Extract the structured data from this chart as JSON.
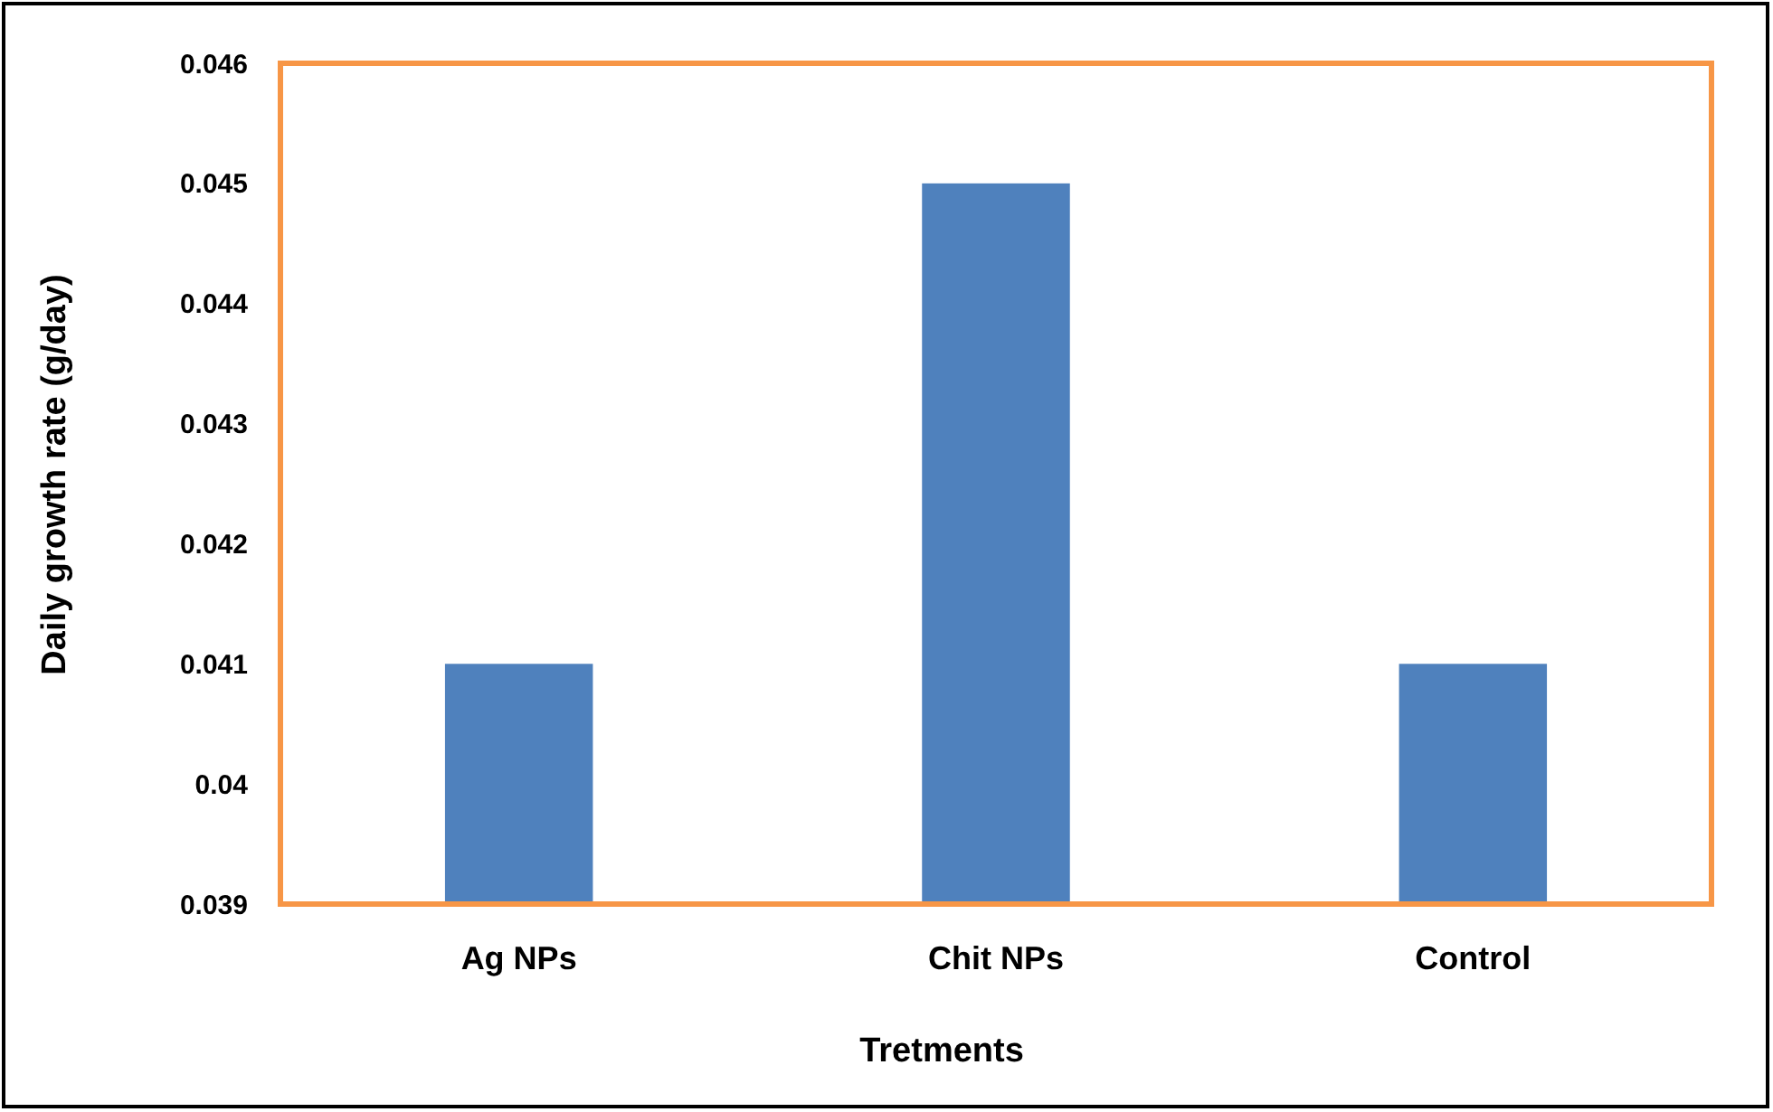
{
  "chart_data": {
    "type": "bar",
    "xlabel": "Tretments",
    "ylabel": "Daily growth rate (g/day)",
    "categories": [
      "Ag NPs",
      "Chit NPs",
      "Control"
    ],
    "values": [
      0.041,
      0.045,
      0.041
    ],
    "color": "#4f81bd",
    "ylim": [
      0.039,
      0.046
    ],
    "yticks": [
      {
        "value": 0.039,
        "label": "0.039"
      },
      {
        "value": 0.04,
        "label": "0.04"
      },
      {
        "value": 0.041,
        "label": "0.041"
      },
      {
        "value": 0.042,
        "label": "0.042"
      },
      {
        "value": 0.043,
        "label": "0.043"
      },
      {
        "value": 0.044,
        "label": "0.044"
      },
      {
        "value": 0.045,
        "label": "0.045"
      },
      {
        "value": 0.046,
        "label": "0.046"
      }
    ],
    "grid": false
  }
}
